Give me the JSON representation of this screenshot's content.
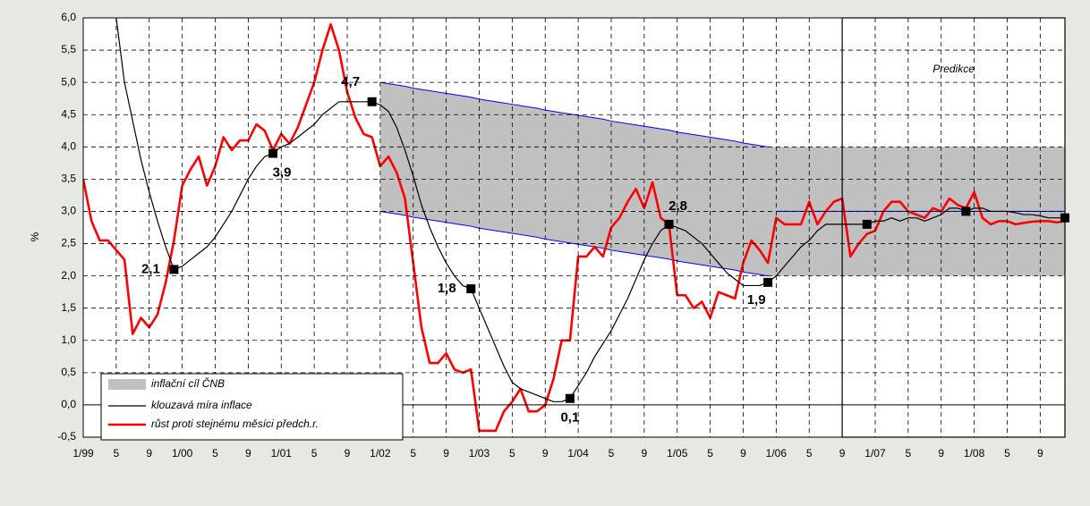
{
  "chart_data": {
    "type": "line",
    "y_label": "%",
    "annotation": "Predikce",
    "categories": [
      "1/99",
      null,
      null,
      null,
      "5",
      null,
      null,
      null,
      "9",
      null,
      null,
      null,
      "1/00",
      null,
      null,
      null,
      "5",
      null,
      null,
      null,
      "9",
      null,
      null,
      null,
      "1/01",
      null,
      null,
      null,
      "5",
      null,
      null,
      null,
      "9",
      null,
      null,
      null,
      "1/02",
      null,
      null,
      null,
      "5",
      null,
      null,
      null,
      "9",
      null,
      null,
      null,
      "1/03",
      null,
      null,
      null,
      "5",
      null,
      null,
      null,
      "9",
      null,
      null,
      null,
      "1/04",
      null,
      null,
      null,
      "5",
      null,
      null,
      null,
      "9",
      null,
      null,
      null,
      "1/05",
      null,
      null,
      null,
      "5",
      null,
      null,
      null,
      "9",
      null,
      null,
      null,
      "1/06",
      null,
      null,
      null,
      "5",
      null,
      null,
      null,
      "9",
      null,
      null,
      null,
      "1/07",
      null,
      null,
      null,
      "5",
      null,
      null,
      null,
      "9",
      null,
      null,
      null,
      "1/08",
      null,
      null,
      null,
      "5",
      null,
      null,
      null,
      "9",
      null,
      null,
      null
    ],
    "ylim": [
      -0.5,
      6.0
    ],
    "yticks": [
      {
        "value": -0.5,
        "label": "-0,5"
      },
      {
        "value": 0,
        "label": "0,0"
      },
      {
        "value": 0.5,
        "label": "0,5"
      },
      {
        "value": 1,
        "label": "1,0"
      },
      {
        "value": 1.5,
        "label": "1,5"
      },
      {
        "value": 2,
        "label": "2,0"
      },
      {
        "value": 2.5,
        "label": "2,5"
      },
      {
        "value": 3,
        "label": "3,0"
      },
      {
        "value": 3.5,
        "label": "3,5"
      },
      {
        "value": 4,
        "label": "4,0"
      },
      {
        "value": 4.5,
        "label": "4,5"
      },
      {
        "value": 5,
        "label": "5,0"
      },
      {
        "value": 5.5,
        "label": "5,5"
      },
      {
        "value": 6,
        "label": "6,0"
      }
    ],
    "grid": true,
    "legend": "lower left",
    "band": {
      "name": "inflační cíl ČNB",
      "color": "#c0c0c0",
      "edge_color": "#0000ff",
      "upper": [
        null,
        null,
        null,
        null,
        null,
        null,
        null,
        null,
        null,
        null,
        null,
        null,
        null,
        null,
        null,
        null,
        null,
        null,
        null,
        null,
        null,
        null,
        null,
        null,
        null,
        null,
        null,
        null,
        null,
        null,
        null,
        null,
        null,
        null,
        null,
        null,
        5.0,
        4.98,
        4.96,
        4.94,
        4.91,
        4.89,
        4.87,
        4.85,
        4.83,
        4.81,
        4.79,
        4.77,
        4.74,
        4.72,
        4.7,
        4.68,
        4.66,
        4.64,
        4.62,
        4.6,
        4.57,
        4.55,
        4.53,
        4.51,
        4.49,
        4.47,
        4.45,
        4.43,
        4.4,
        4.38,
        4.36,
        4.34,
        4.32,
        4.3,
        4.28,
        4.26,
        4.23,
        4.21,
        4.19,
        4.17,
        4.15,
        4.13,
        4.11,
        4.09,
        4.06,
        4.04,
        4.02,
        4.0,
        4,
        4,
        4,
        4,
        4,
        4,
        4,
        4,
        4,
        4,
        4,
        4,
        4,
        4,
        4,
        4,
        4,
        4,
        4,
        4,
        4,
        4,
        4,
        4,
        4,
        4,
        4,
        4,
        4,
        4,
        4,
        4,
        4,
        4,
        4,
        4
      ],
      "lower": [
        null,
        null,
        null,
        null,
        null,
        null,
        null,
        null,
        null,
        null,
        null,
        null,
        null,
        null,
        null,
        null,
        null,
        null,
        null,
        null,
        null,
        null,
        null,
        null,
        null,
        null,
        null,
        null,
        null,
        null,
        null,
        null,
        null,
        null,
        null,
        null,
        3.0,
        2.98,
        2.96,
        2.94,
        2.91,
        2.89,
        2.87,
        2.85,
        2.83,
        2.81,
        2.79,
        2.77,
        2.74,
        2.72,
        2.7,
        2.68,
        2.66,
        2.64,
        2.62,
        2.6,
        2.57,
        2.55,
        2.53,
        2.51,
        2.49,
        2.47,
        2.45,
        2.43,
        2.4,
        2.38,
        2.36,
        2.34,
        2.32,
        2.3,
        2.28,
        2.26,
        2.23,
        2.21,
        2.19,
        2.17,
        2.15,
        2.13,
        2.11,
        2.09,
        2.06,
        2.04,
        2.02,
        2.0,
        2,
        2,
        2,
        2,
        2,
        2,
        2,
        2,
        2,
        2,
        2,
        2,
        2,
        2,
        2,
        2,
        2,
        2,
        2,
        2,
        2,
        2,
        2,
        2,
        2,
        2,
        2,
        2,
        2,
        2,
        2,
        2,
        2,
        2,
        2,
        2
      ],
      "center": [
        null,
        null,
        null,
        null,
        null,
        null,
        null,
        null,
        null,
        null,
        null,
        null,
        null,
        null,
        null,
        null,
        null,
        null,
        null,
        null,
        null,
        null,
        null,
        null,
        null,
        null,
        null,
        null,
        null,
        null,
        null,
        null,
        null,
        null,
        null,
        null,
        null,
        null,
        null,
        null,
        null,
        null,
        null,
        null,
        null,
        null,
        null,
        null,
        null,
        null,
        null,
        null,
        null,
        null,
        null,
        null,
        null,
        null,
        null,
        null,
        null,
        null,
        null,
        null,
        null,
        null,
        null,
        null,
        null,
        null,
        null,
        null,
        null,
        null,
        null,
        null,
        null,
        null,
        null,
        null,
        null,
        null,
        null,
        null,
        3,
        3,
        3,
        3,
        3,
        3,
        3,
        3,
        3,
        3,
        3,
        3,
        3,
        3,
        3,
        3,
        3,
        3,
        3,
        3,
        3,
        3,
        3,
        3,
        3,
        3,
        3,
        3,
        3,
        3,
        3,
        3,
        3,
        3,
        3,
        3
      ]
    },
    "series": [
      {
        "name": "klouzavá míra inflace",
        "color": "#000000",
        "values": [
          null,
          null,
          null,
          null,
          6.0,
          5.0,
          4.4,
          3.8,
          3.3,
          2.85,
          2.45,
          2.1,
          2.15,
          2.25,
          2.35,
          2.45,
          2.6,
          2.8,
          3.0,
          3.25,
          3.5,
          3.7,
          3.85,
          3.9,
          4.0,
          4.05,
          4.15,
          4.25,
          4.35,
          4.5,
          4.6,
          4.7,
          4.7,
          4.7,
          4.7,
          4.7,
          4.65,
          4.55,
          4.3,
          3.95,
          3.55,
          3.1,
          2.75,
          2.45,
          2.2,
          2.0,
          1.85,
          1.8,
          1.5,
          1.2,
          0.9,
          0.6,
          0.35,
          0.25,
          0.2,
          0.15,
          0.1,
          0.05,
          0.05,
          0.1,
          0.3,
          0.5,
          0.75,
          0.95,
          1.15,
          1.4,
          1.65,
          1.95,
          2.25,
          2.5,
          2.7,
          2.8,
          2.75,
          2.7,
          2.6,
          2.5,
          2.35,
          2.2,
          2.05,
          1.95,
          1.85,
          1.85,
          1.85,
          1.9,
          2.0,
          2.15,
          2.3,
          2.45,
          2.55,
          2.7,
          2.8,
          2.8,
          2.8,
          2.8,
          2.8,
          2.8,
          2.85,
          2.85,
          2.9,
          2.85,
          2.9,
          2.9,
          2.85,
          2.9,
          2.95,
          3.05,
          3.05,
          3.0,
          3.05,
          3.05,
          3.0,
          3.0,
          3.0,
          2.98,
          2.95,
          2.95,
          2.93,
          2.9,
          2.9,
          2.9
        ],
        "value_labels": [
          null,
          null,
          null,
          null,
          null,
          null,
          null,
          null,
          null,
          null,
          null,
          "2,1",
          null,
          null,
          null,
          null,
          null,
          null,
          null,
          null,
          null,
          null,
          null,
          "3,9",
          null,
          null,
          null,
          null,
          null,
          null,
          null,
          null,
          null,
          null,
          null,
          "4,7",
          null,
          null,
          null,
          null,
          null,
          null,
          null,
          null,
          null,
          null,
          null,
          "1,8",
          null,
          null,
          null,
          null,
          null,
          null,
          null,
          null,
          null,
          null,
          null,
          "0,1",
          null,
          null,
          null,
          null,
          null,
          null,
          null,
          null,
          null,
          null,
          null,
          "2,8",
          null,
          null,
          null,
          null,
          null,
          null,
          null,
          null,
          null,
          null,
          null,
          "1,9",
          null,
          null,
          null,
          null,
          null,
          null,
          null,
          null,
          null,
          null,
          null,
          null,
          null,
          null,
          null,
          null,
          null,
          null,
          null,
          null,
          null,
          null,
          null,
          null,
          null,
          null,
          null,
          null,
          null,
          null,
          null,
          null,
          null,
          null,
          null,
          null
        ]
      },
      {
        "name": "růst proti stejnému měsíci předch.r.",
        "color": "#ff0000",
        "values": [
          3.5,
          2.85,
          2.55,
          2.55,
          2.4,
          2.25,
          1.1,
          1.35,
          1.2,
          1.4,
          1.9,
          2.55,
          3.4,
          3.65,
          3.85,
          3.4,
          3.7,
          4.15,
          3.95,
          4.1,
          4.1,
          4.35,
          4.25,
          3.95,
          4.2,
          4.05,
          4.3,
          4.65,
          5.0,
          5.5,
          5.9,
          5.5,
          4.85,
          4.45,
          4.2,
          4.15,
          3.7,
          3.85,
          3.6,
          3.2,
          2.2,
          1.2,
          0.65,
          0.65,
          0.8,
          0.55,
          0.5,
          0.55,
          -0.4,
          -0.4,
          -0.4,
          -0.1,
          0.05,
          0.25,
          -0.1,
          -0.1,
          0.0,
          0.4,
          1.0,
          1.0,
          2.3,
          2.3,
          2.45,
          2.3,
          2.75,
          2.9,
          3.15,
          3.35,
          3.05,
          3.45,
          2.9,
          2.8,
          1.7,
          1.7,
          1.5,
          1.6,
          1.35,
          1.75,
          1.7,
          1.65,
          2.2,
          2.55,
          2.4,
          2.2,
          2.9,
          2.8,
          2.8,
          2.8,
          3.15,
          2.8,
          3.0,
          3.15,
          3.2,
          2.3,
          2.5,
          2.65,
          2.7,
          3.0,
          3.15,
          3.15,
          3.0,
          2.95,
          2.9,
          3.05,
          3.0,
          3.2,
          3.1,
          3.05,
          3.3,
          2.9,
          2.8,
          2.85,
          2.85,
          2.8,
          2.82,
          2.84,
          2.85,
          2.85,
          2.83,
          2.85
        ]
      }
    ]
  }
}
